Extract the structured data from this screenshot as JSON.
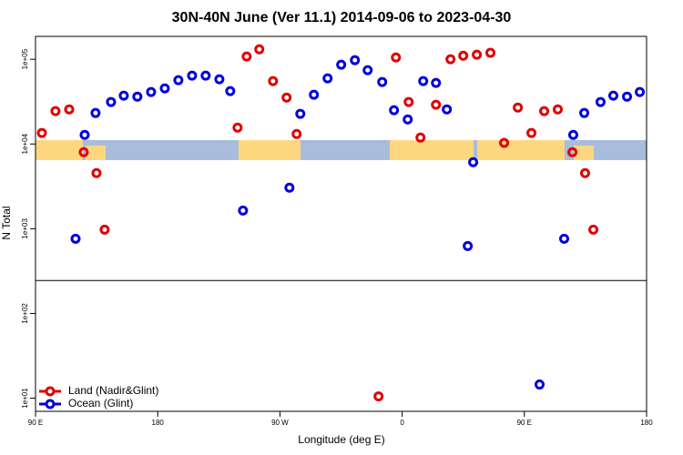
{
  "chart_data": {
    "type": "scatter",
    "title": "30N-40N June (Ver 11.1)   2014-09-06 to 2023-04-30",
    "x_label": "Longitude (deg E)",
    "y_label": "N Total",
    "log_y": true,
    "legend_position": "bottom-left",
    "xlim": [
      90,
      540
    ],
    "ylim": [
      7,
      186000
    ],
    "reference_line": 245,
    "xticks": [
      {
        "value": 90,
        "label": "90 E"
      },
      180,
      {
        "value": 270,
        "label": "90 W"
      },
      {
        "value": 360,
        "label": "0"
      },
      {
        "value": 450,
        "label": "90 E"
      },
      180
    ],
    "yticks": [
      {
        "value": 10,
        "label": "1e+01"
      },
      {
        "value": 100,
        "label": "1e+02"
      },
      {
        "value": 1000,
        "label": "1e+03"
      },
      {
        "value": 10000,
        "label": "1e+04"
      },
      {
        "value": 100000,
        "label": "1e+05"
      }
    ],
    "series": [
      {
        "name": "Land (Nadir&Glint)",
        "color": "#e00000",
        "x": [
          94.7,
          104.7,
          114.8,
          125.5,
          134.9,
          140.9,
          238.8,
          245.5,
          254.8,
          264.9,
          274.9,
          282.3,
          342.6,
          355.4,
          364.8,
          373.5,
          384.9,
          395.6,
          405,
          415,
          425,
          435.1,
          445.2,
          455.2,
          464.6,
          474.6,
          485.4,
          494.7,
          500.8
        ],
        "values": [
          13500,
          24400,
          25600,
          8000,
          4530,
          975,
          15600,
          107600,
          131000,
          55200,
          35300,
          13100,
          10.5,
          105000,
          31300,
          11900,
          29000,
          100000,
          110000,
          113000,
          119000,
          10300,
          26900,
          13500,
          24400,
          25600,
          8000,
          4530,
          975
        ]
      },
      {
        "name": "Ocean (Glint)",
        "color": "#0000dd",
        "x": [
          119.5,
          126.2,
          134.2,
          145.6,
          155,
          165,
          175.1,
          185.2,
          195.2,
          205.3,
          215.3,
          225.4,
          233.4,
          242.8,
          277,
          285,
          295,
          305.1,
          315.1,
          325.2,
          334.6,
          345.3,
          354,
          364.1,
          375.5,
          384.9,
          392.9,
          408.3,
          412.3,
          461.2,
          479.3,
          486,
          494.1,
          506.1,
          515.5,
          525.6,
          535
        ],
        "values": [
          762,
          12800,
          23200,
          31300,
          37200,
          36200,
          41000,
          45300,
          56600,
          64000,
          64000,
          58000,
          42100,
          1640,
          3050,
          22700,
          38100,
          59400,
          86100,
          97500,
          74300,
          53800,
          25000,
          19500,
          55200,
          52500,
          25600,
          625,
          6100,
          14.5,
          762,
          12800,
          23200,
          31300,
          37200,
          36200,
          41000
        ]
      }
    ]
  }
}
